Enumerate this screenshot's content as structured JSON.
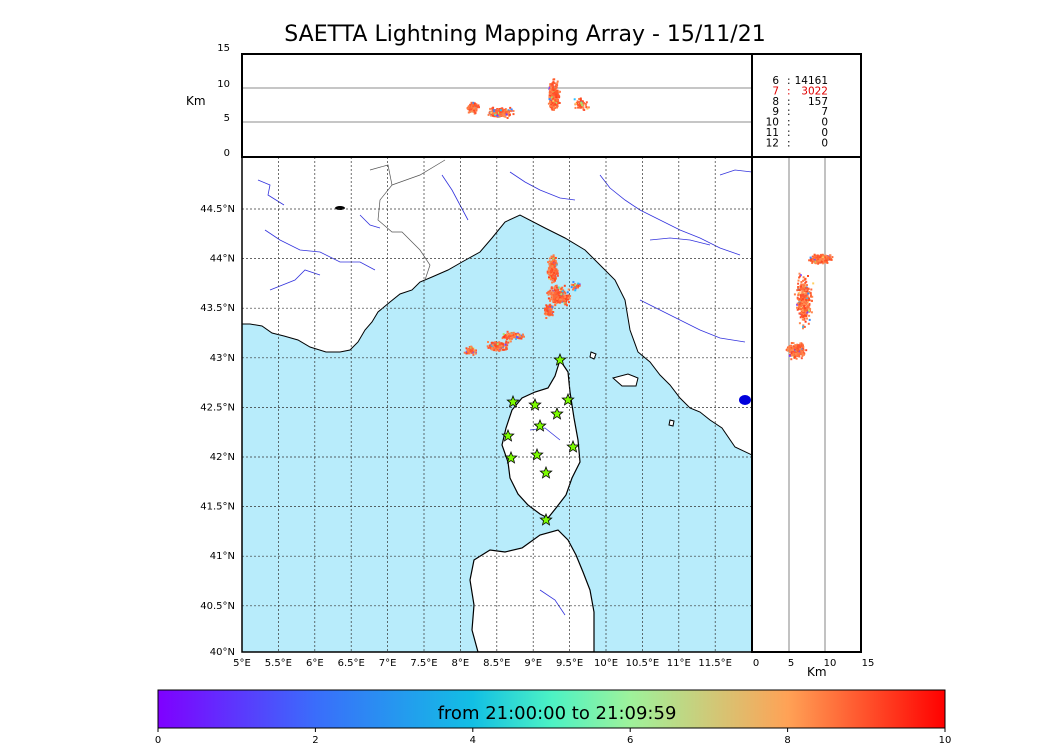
{
  "title": "SAETTA Lightning Mapping Array - 15/11/21",
  "altitude_panel": {
    "unit": "Km",
    "y_ticks": [
      "15",
      "10",
      "5",
      "0"
    ]
  },
  "side_panel": {
    "unit": "Km",
    "x_ticks": [
      "0",
      "5",
      "10",
      "15"
    ]
  },
  "map": {
    "lon_ticks": [
      "5°E",
      "5.5°E",
      "6°E",
      "6.5°E",
      "7°E",
      "7.5°E",
      "8°E",
      "8.5°E",
      "9°E",
      "9.5°E",
      "10°E",
      "10.5°E",
      "11°E",
      "11.5°E"
    ],
    "lat_ticks": [
      "44.5°N",
      "44°N",
      "43.5°N",
      "43°N",
      "42.5°N",
      "42°N",
      "41.5°N",
      "41°N",
      "40.5°N",
      "40°N"
    ],
    "sea_color": "#b8ecfb",
    "station_marker": "star-icon",
    "station_color": "#7cfc00"
  },
  "counts": [
    {
      "label": "6",
      "value": "14161",
      "color": "#000000"
    },
    {
      "label": "7",
      "value": "3022",
      "color": "#e00000"
    },
    {
      "label": "8",
      "value": "157",
      "color": "#000000"
    },
    {
      "label": "9",
      "value": "7",
      "color": "#000000"
    },
    {
      "label": "10",
      "value": "0",
      "color": "#000000"
    },
    {
      "label": "11",
      "value": "0",
      "color": "#000000"
    },
    {
      "label": "12",
      "value": "0",
      "color": "#000000"
    }
  ],
  "colorbar": {
    "label": "from 21:00:00 to 21:09:59",
    "ticks": [
      "0",
      "2",
      "4",
      "6",
      "8",
      "10"
    ]
  }
}
